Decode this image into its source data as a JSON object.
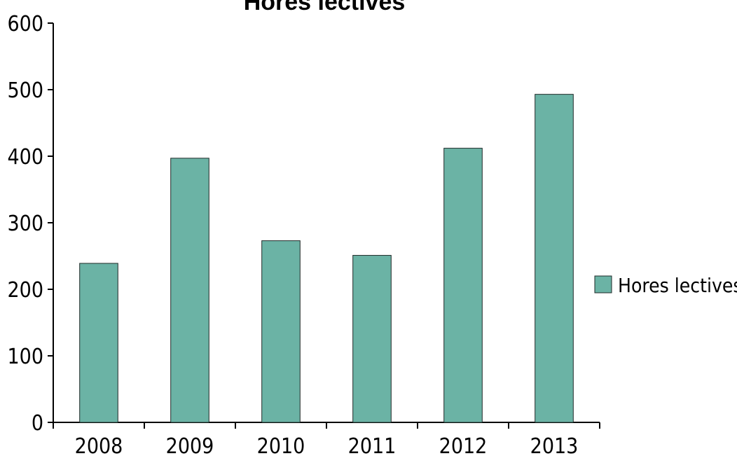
{
  "chart_data": {
    "type": "bar",
    "title": "Hores lectives",
    "categories": [
      "2008",
      "2009",
      "2010",
      "2011",
      "2012",
      "2013"
    ],
    "series": [
      {
        "name": "Hores lectives",
        "values": [
          239,
          397,
          273,
          251,
          412,
          493
        ]
      }
    ],
    "xlabel": "",
    "ylabel": "",
    "ylim": [
      0,
      600
    ],
    "yticks": [
      "0",
      "100",
      "200",
      "300",
      "400",
      "500",
      "600"
    ],
    "grid": false,
    "legend_position": "right",
    "colors": {
      "bar": "#6bb3a5",
      "bar_stroke": "#1f2a28",
      "axis": "#000000"
    }
  }
}
